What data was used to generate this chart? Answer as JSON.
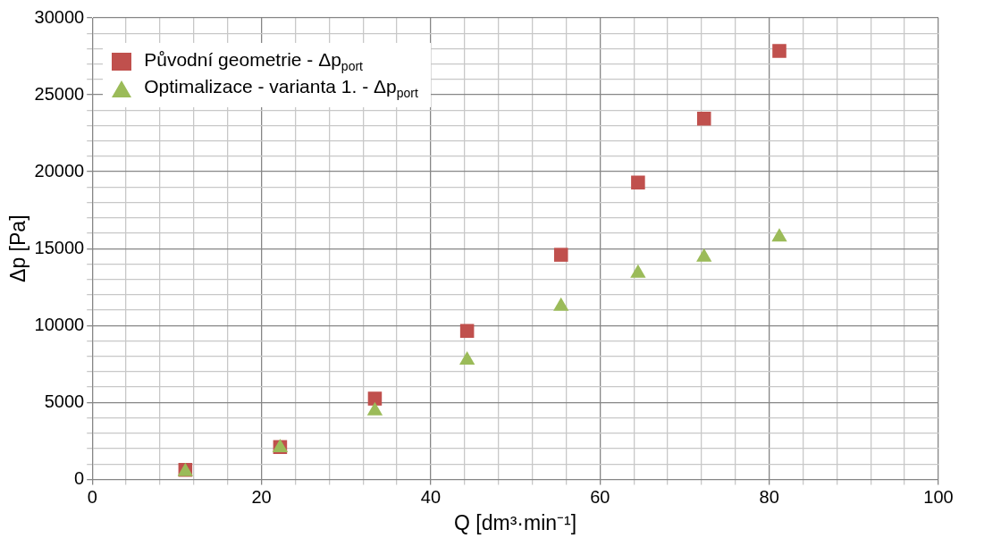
{
  "chart_data": {
    "type": "scatter",
    "xlabel": "Q [dm³·min⁻¹]",
    "ylabel": "Δp [Pa]",
    "xlim": [
      0,
      100
    ],
    "ylim": [
      0,
      30000
    ],
    "xticks": [
      0,
      {
        "value": 4,
        "label": null
      },
      {
        "value": 8,
        "label": null
      },
      {
        "value": 12,
        "label": null
      },
      {
        "value": 16,
        "label": null
      },
      20,
      {
        "value": 24,
        "label": null
      },
      {
        "value": 28,
        "label": null
      },
      {
        "value": 32,
        "label": null
      },
      {
        "value": 36,
        "label": null
      },
      40,
      {
        "value": 44,
        "label": null
      },
      {
        "value": 48,
        "label": null
      },
      {
        "value": 52,
        "label": null
      },
      {
        "value": 56,
        "label": null
      },
      60,
      {
        "value": 64,
        "label": null
      },
      {
        "value": 68,
        "label": null
      },
      {
        "value": 72,
        "label": null
      },
      {
        "value": 76,
        "label": null
      },
      80,
      {
        "value": 84,
        "label": null
      },
      {
        "value": 88,
        "label": null
      },
      {
        "value": 92,
        "label": null
      },
      {
        "value": 96,
        "label": null
      },
      100
    ],
    "yticks": [
      0,
      {
        "value": 1000,
        "label": null
      },
      {
        "value": 2000,
        "label": null
      },
      {
        "value": 3000,
        "label": null
      },
      {
        "value": 4000,
        "label": null
      },
      5000,
      {
        "value": 6000,
        "label": null
      },
      {
        "value": 7000,
        "label": null
      },
      {
        "value": 8000,
        "label": null
      },
      {
        "value": 9000,
        "label": null
      },
      10000,
      {
        "value": 11000,
        "label": null
      },
      {
        "value": 12000,
        "label": null
      },
      {
        "value": 13000,
        "label": null
      },
      {
        "value": 14000,
        "label": null
      },
      15000,
      {
        "value": 16000,
        "label": null
      },
      {
        "value": 17000,
        "label": null
      },
      {
        "value": 18000,
        "label": null
      },
      {
        "value": 19000,
        "label": null
      },
      20000,
      {
        "value": 21000,
        "label": null
      },
      {
        "value": 22000,
        "label": null
      },
      {
        "value": 23000,
        "label": null
      },
      {
        "value": 24000,
        "label": null
      },
      25000,
      {
        "value": 26000,
        "label": null
      },
      {
        "value": 27000,
        "label": null
      },
      {
        "value": 28000,
        "label": null
      },
      {
        "value": 29000,
        "label": null
      },
      30000
    ],
    "grid": true,
    "legend": "top left",
    "x": [
      11.0,
      22.2,
      33.4,
      44.3,
      55.4,
      64.5,
      72.3,
      81.2
    ],
    "series": [
      {
        "name": "Původní geometrie - Δp$_{port}$",
        "color": "#c0504d",
        "marker": "square",
        "values": [
          620,
          2100,
          5250,
          9650,
          14600,
          19300,
          23450,
          27850
        ]
      },
      {
        "name": "Optimalizace - varianta 1. - Δp$_{port}$",
        "color": "#9bbb59",
        "marker": "triangle",
        "values": [
          500,
          2050,
          4450,
          7750,
          11250,
          13400,
          14450,
          15750
        ]
      }
    ]
  }
}
